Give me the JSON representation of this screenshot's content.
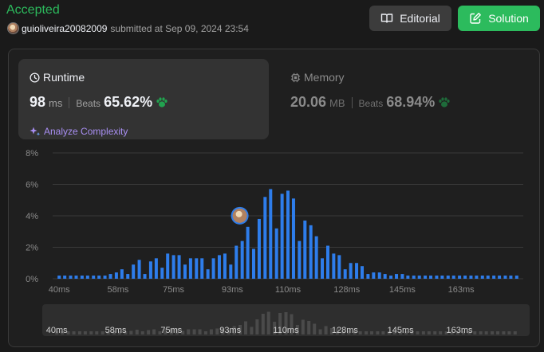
{
  "header": {
    "status": "Accepted",
    "username": "guioliveira20082009",
    "submitted_text": "submitted at Sep 09, 2024 23:54",
    "editorial_label": "Editorial",
    "solution_label": "Solution"
  },
  "runtime": {
    "title": "Runtime",
    "value": "98",
    "unit": "ms",
    "beats_label": "Beats",
    "beats": "65.62%",
    "analyze_label": "Analyze Complexity"
  },
  "memory": {
    "title": "Memory",
    "value": "20.06",
    "unit": "MB",
    "beats_label": "Beats",
    "beats": "68.94%"
  },
  "colors": {
    "accepted": "#2cbb5d",
    "bar": "#2e7deb",
    "analyze": "#a98ff3",
    "paw": "#21a34f"
  },
  "chart_data": {
    "type": "bar",
    "ylabel_ticks": [
      "0%",
      "2%",
      "4%",
      "6%",
      "8%"
    ],
    "ylim": [
      0,
      8
    ],
    "x_tick_labels": [
      "40ms",
      "58ms",
      "75ms",
      "93ms",
      "110ms",
      "128ms",
      "145ms",
      "163ms"
    ],
    "x_tick_values": [
      40,
      58,
      75,
      93,
      110,
      128,
      145,
      163
    ],
    "x_range": [
      38,
      182
    ],
    "user_runtime_ms": 98,
    "bars": [
      {
        "x": 40,
        "y": 0.2
      },
      {
        "x": 41.7,
        "y": 0.2
      },
      {
        "x": 43.5,
        "y": 0.2
      },
      {
        "x": 45.2,
        "y": 0.2
      },
      {
        "x": 47,
        "y": 0.2
      },
      {
        "x": 48.7,
        "y": 0.2
      },
      {
        "x": 50.5,
        "y": 0.2
      },
      {
        "x": 52.2,
        "y": 0.2
      },
      {
        "x": 54,
        "y": 0.2
      },
      {
        "x": 55.7,
        "y": 0.3
      },
      {
        "x": 57.5,
        "y": 0.4
      },
      {
        "x": 59.2,
        "y": 0.6
      },
      {
        "x": 61,
        "y": 0.3
      },
      {
        "x": 62.7,
        "y": 0.9
      },
      {
        "x": 64.5,
        "y": 1.2
      },
      {
        "x": 66.2,
        "y": 0.3
      },
      {
        "x": 68,
        "y": 1.1
      },
      {
        "x": 69.7,
        "y": 1.3
      },
      {
        "x": 71.5,
        "y": 0.7
      },
      {
        "x": 73.2,
        "y": 1.6
      },
      {
        "x": 75,
        "y": 1.5
      },
      {
        "x": 76.7,
        "y": 1.5
      },
      {
        "x": 78.5,
        "y": 0.9
      },
      {
        "x": 80.2,
        "y": 1.3
      },
      {
        "x": 82,
        "y": 1.3
      },
      {
        "x": 83.7,
        "y": 1.3
      },
      {
        "x": 85.5,
        "y": 0.6
      },
      {
        "x": 87.2,
        "y": 1.3
      },
      {
        "x": 89,
        "y": 1.5
      },
      {
        "x": 90.7,
        "y": 1.6
      },
      {
        "x": 92.5,
        "y": 0.9
      },
      {
        "x": 94.2,
        "y": 2.1
      },
      {
        "x": 96,
        "y": 2.4
      },
      {
        "x": 97.7,
        "y": 3.3
      },
      {
        "x": 99.5,
        "y": 1.9
      },
      {
        "x": 101.2,
        "y": 3.8
      },
      {
        "x": 103,
        "y": 5.2
      },
      {
        "x": 104.7,
        "y": 5.7
      },
      {
        "x": 106.5,
        "y": 3.2
      },
      {
        "x": 108.2,
        "y": 5.4
      },
      {
        "x": 110,
        "y": 5.6
      },
      {
        "x": 111.7,
        "y": 5.1
      },
      {
        "x": 113.5,
        "y": 2.4
      },
      {
        "x": 115.2,
        "y": 3.7
      },
      {
        "x": 117,
        "y": 3.4
      },
      {
        "x": 118.7,
        "y": 2.7
      },
      {
        "x": 120.5,
        "y": 1.3
      },
      {
        "x": 122.2,
        "y": 2.1
      },
      {
        "x": 124,
        "y": 1.6
      },
      {
        "x": 125.7,
        "y": 1.5
      },
      {
        "x": 127.5,
        "y": 0.6
      },
      {
        "x": 129.2,
        "y": 1.0
      },
      {
        "x": 131,
        "y": 1.0
      },
      {
        "x": 132.7,
        "y": 0.8
      },
      {
        "x": 134.5,
        "y": 0.3
      },
      {
        "x": 136.2,
        "y": 0.4
      },
      {
        "x": 138,
        "y": 0.4
      },
      {
        "x": 139.7,
        "y": 0.3
      },
      {
        "x": 141.5,
        "y": 0.2
      },
      {
        "x": 143.2,
        "y": 0.3
      },
      {
        "x": 145,
        "y": 0.3
      },
      {
        "x": 146.7,
        "y": 0.2
      },
      {
        "x": 148.5,
        "y": 0.2
      },
      {
        "x": 150.2,
        "y": 0.2
      },
      {
        "x": 152,
        "y": 0.2
      },
      {
        "x": 153.7,
        "y": 0.2
      },
      {
        "x": 155.5,
        "y": 0.2
      },
      {
        "x": 157.2,
        "y": 0.2
      },
      {
        "x": 159,
        "y": 0.2
      },
      {
        "x": 160.7,
        "y": 0.2
      },
      {
        "x": 162.5,
        "y": 0.2
      },
      {
        "x": 164.2,
        "y": 0.2
      },
      {
        "x": 166,
        "y": 0.2
      },
      {
        "x": 167.7,
        "y": 0.2
      },
      {
        "x": 169.5,
        "y": 0.2
      },
      {
        "x": 171.2,
        "y": 0.2
      },
      {
        "x": 173,
        "y": 0.2
      },
      {
        "x": 174.7,
        "y": 0.2
      },
      {
        "x": 176.5,
        "y": 0.2
      },
      {
        "x": 178.2,
        "y": 0.2
      },
      {
        "x": 180,
        "y": 0.2
      }
    ],
    "grid": true,
    "legend": "none"
  }
}
